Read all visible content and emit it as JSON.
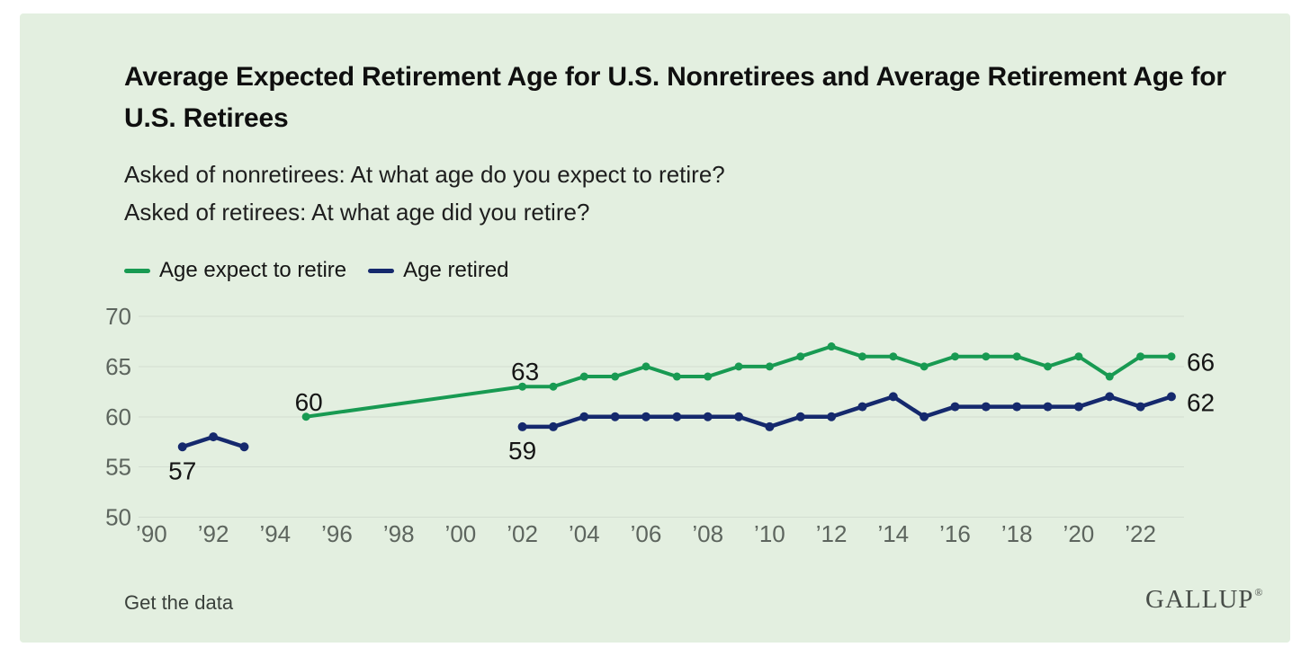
{
  "header": {
    "title": "Average Expected Retirement Age for U.S. Nonretirees and Average Retirement Age for U.S. Retirees",
    "subtitle_line1": "Asked of nonretirees: At what age do you expect to retire?",
    "subtitle_line2": "Asked of retirees: At what age did you retire?"
  },
  "legend": {
    "items": [
      {
        "label": "Age expect to retire",
        "color": "#189a52"
      },
      {
        "label": "Age retired",
        "color": "#15296d"
      }
    ]
  },
  "footer": {
    "link_label": "Get the data",
    "brand": "GALLUP",
    "brand_registered": "®"
  },
  "colors": {
    "panel_background": "#e3efe0",
    "page_background": "#ffffff",
    "gridline": "#d3ddd1",
    "tick_label": "#5d655e",
    "data_label": "#151515",
    "expect_line": "#189a52",
    "retired_line": "#15296d"
  },
  "chart_data": {
    "type": "line",
    "title": "Average Expected Retirement Age for U.S. Nonretirees and Average Retirement Age for U.S. Retirees",
    "subtitle": "Asked of nonretirees: At what age do you expect to retire? Asked of retirees: At what age did you retire?",
    "xlabel": "",
    "ylabel": "",
    "ylim": [
      50,
      70
    ],
    "yticks": [
      70,
      65,
      60,
      55,
      50
    ],
    "xticks": [
      {
        "year": 1990,
        "label": "’90"
      },
      {
        "year": 1992,
        "label": "’92"
      },
      {
        "year": 1994,
        "label": "’94"
      },
      {
        "year": 1996,
        "label": "’96"
      },
      {
        "year": 1998,
        "label": "’98"
      },
      {
        "year": 2000,
        "label": "’00"
      },
      {
        "year": 2002,
        "label": "’02"
      },
      {
        "year": 2004,
        "label": "’04"
      },
      {
        "year": 2006,
        "label": "’06"
      },
      {
        "year": 2008,
        "label": "’08"
      },
      {
        "year": 2010,
        "label": "’10"
      },
      {
        "year": 2012,
        "label": "’12"
      },
      {
        "year": 2014,
        "label": "’14"
      },
      {
        "year": 2016,
        "label": "’16"
      },
      {
        "year": 2018,
        "label": "’18"
      },
      {
        "year": 2020,
        "label": "’20"
      },
      {
        "year": 2022,
        "label": "’22"
      }
    ],
    "grid": true,
    "legend_position": "top-left",
    "series": [
      {
        "name": "Age expect to retire",
        "color": "#189a52",
        "segments": [
          [
            [
              1995,
              60
            ],
            [
              2002,
              63
            ],
            [
              2003,
              63
            ],
            [
              2004,
              64
            ],
            [
              2005,
              64
            ],
            [
              2006,
              65
            ],
            [
              2007,
              64
            ],
            [
              2008,
              64
            ],
            [
              2009,
              65
            ],
            [
              2010,
              65
            ],
            [
              2011,
              66
            ],
            [
              2012,
              67
            ],
            [
              2013,
              66
            ],
            [
              2014,
              66
            ],
            [
              2015,
              65
            ],
            [
              2016,
              66
            ],
            [
              2017,
              66
            ],
            [
              2018,
              66
            ],
            [
              2019,
              65
            ],
            [
              2020,
              66
            ],
            [
              2021,
              64
            ],
            [
              2022,
              66
            ],
            [
              2023,
              66
            ]
          ]
        ]
      },
      {
        "name": "Age retired",
        "color": "#15296d",
        "segments": [
          [
            [
              1991,
              57
            ],
            [
              1992,
              58
            ],
            [
              1993,
              57
            ]
          ],
          [
            [
              2002,
              59
            ],
            [
              2003,
              59
            ],
            [
              2004,
              60
            ],
            [
              2005,
              60
            ],
            [
              2006,
              60
            ],
            [
              2007,
              60
            ],
            [
              2008,
              60
            ],
            [
              2009,
              60
            ],
            [
              2010,
              59
            ],
            [
              2011,
              60
            ],
            [
              2012,
              60
            ],
            [
              2013,
              61
            ],
            [
              2014,
              62
            ],
            [
              2015,
              60
            ],
            [
              2016,
              61
            ],
            [
              2017,
              61
            ],
            [
              2018,
              61
            ],
            [
              2019,
              61
            ],
            [
              2020,
              61
            ],
            [
              2021,
              62
            ],
            [
              2022,
              61
            ],
            [
              2023,
              62
            ]
          ]
        ]
      }
    ],
    "annotations": [
      {
        "text": "60",
        "series": 0,
        "year": 1995,
        "value": 60,
        "side": "above"
      },
      {
        "text": "63",
        "series": 0,
        "year": 2002,
        "value": 63,
        "side": "above"
      },
      {
        "text": "66",
        "series": 0,
        "year": 2023,
        "value": 66,
        "side": "right"
      },
      {
        "text": "57",
        "series": 1,
        "year": 1991,
        "value": 57,
        "side": "below"
      },
      {
        "text": "59",
        "series": 1,
        "year": 2002,
        "value": 59,
        "side": "below"
      },
      {
        "text": "62",
        "series": 1,
        "year": 2023,
        "value": 62,
        "side": "right"
      }
    ]
  }
}
